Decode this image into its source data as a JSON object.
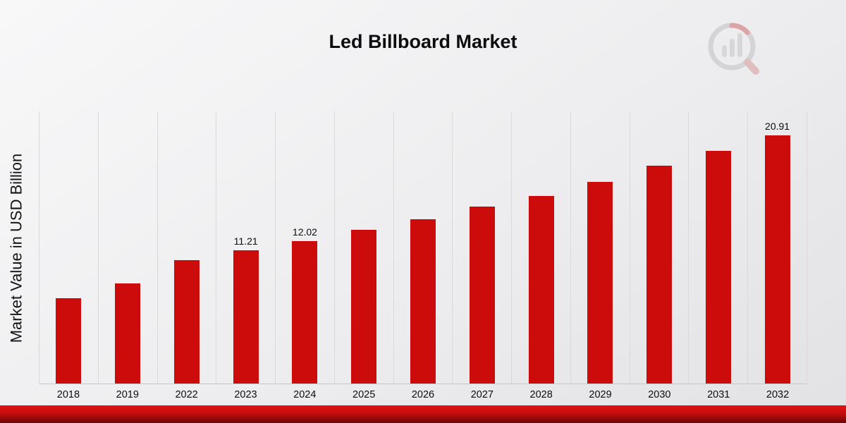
{
  "page": {
    "title": "Led Billboard Market"
  },
  "icons": {
    "brand_logo": "bar-chart-magnifier-logo"
  },
  "colors": {
    "bar": "#cc0b0b",
    "footer_band_top": "#e31212",
    "footer_band_bottom": "#6d0606",
    "gridline": "#d9d9dc"
  },
  "chart_data": {
    "type": "bar",
    "title": "Led Billboard Market",
    "xlabel": "",
    "ylabel": "Market Value in USD Billion",
    "ylim": [
      0,
      23
    ],
    "grid": "vertical",
    "legend": "none",
    "bar_color": "#cc0b0b",
    "categories": [
      "2018",
      "2019",
      "2022",
      "2023",
      "2024",
      "2025",
      "2026",
      "2027",
      "2028",
      "2029",
      "2030",
      "2031",
      "2032"
    ],
    "values": [
      7.2,
      8.45,
      10.4,
      11.21,
      12.02,
      12.95,
      13.85,
      14.9,
      15.8,
      17.0,
      18.35,
      19.6,
      20.91
    ],
    "data_labels": [
      "",
      "",
      "",
      "11.21",
      "12.02",
      "",
      "",
      "",
      "",
      "",
      "",
      "",
      "20.91"
    ]
  }
}
